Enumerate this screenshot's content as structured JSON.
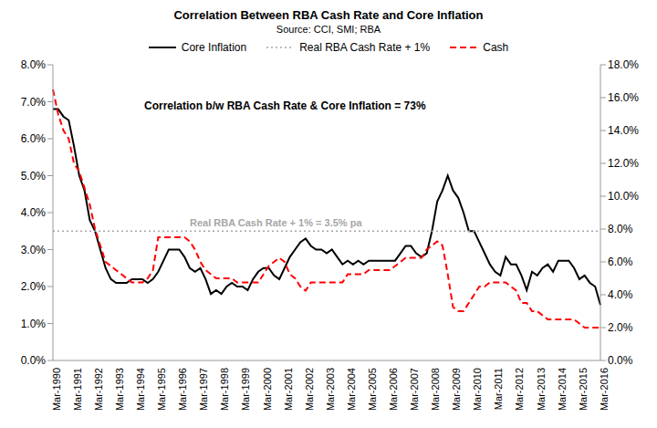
{
  "chart_data": {
    "type": "line",
    "title": "Correlation Between RBA Cash Rate and Core Inflation",
    "subtitle": "Source: CCI, SMI; RBA",
    "annotations": [
      "Correlation b/w RBA Cash Rate & Core Inflation = 73%",
      "Real RBA Cash Rate + 1% = 3.5% pa"
    ],
    "categories": [
      "Mar-1990",
      null,
      null,
      null,
      "Mar-1991",
      null,
      null,
      null,
      "Mar-1992",
      null,
      null,
      null,
      "Mar-1993",
      null,
      null,
      null,
      "Mar-1994",
      null,
      null,
      null,
      "Mar-1995",
      null,
      null,
      null,
      "Mar-1996",
      null,
      null,
      null,
      "Mar-1997",
      null,
      null,
      null,
      "Mar-1998",
      null,
      null,
      null,
      "Mar-1999",
      null,
      null,
      null,
      "Mar-2000",
      null,
      null,
      null,
      "Mar-2001",
      null,
      null,
      null,
      "Mar-2002",
      null,
      null,
      null,
      "Mar-2003",
      null,
      null,
      null,
      "Mar-2004",
      null,
      null,
      null,
      "Mar-2005",
      null,
      null,
      null,
      "Mar-2006",
      null,
      null,
      null,
      "Mar-2007",
      null,
      null,
      null,
      "Mar-2008",
      null,
      null,
      null,
      "Mar-2009",
      null,
      null,
      null,
      "Mar-2010",
      null,
      null,
      null,
      "Mar-2011",
      null,
      null,
      null,
      "Mar-2012",
      null,
      null,
      null,
      "Mar-2013",
      null,
      null,
      null,
      "Mar-2014",
      null,
      null,
      null,
      "Mar-2015",
      null,
      null,
      null,
      "Mar-2016"
    ],
    "series": [
      {
        "name": "Core Inflation",
        "color": "#000000",
        "line_style": "solid",
        "values": [
          6.8,
          6.8,
          6.6,
          6.5,
          5.8,
          5.0,
          4.6,
          3.8,
          3.5,
          3.0,
          2.5,
          2.2,
          2.1,
          2.1,
          2.1,
          2.2,
          2.2,
          2.2,
          2.1,
          2.2,
          2.4,
          2.7,
          3.0,
          3.0,
          3.0,
          2.8,
          2.5,
          2.4,
          2.5,
          2.2,
          1.8,
          1.9,
          1.8,
          2.0,
          2.1,
          2.0,
          2.0,
          1.9,
          2.2,
          2.4,
          2.5,
          2.5,
          2.3,
          2.2,
          2.5,
          2.8,
          3.0,
          3.2,
          3.3,
          3.1,
          3.0,
          3.0,
          2.9,
          3.0,
          2.8,
          2.6,
          2.7,
          2.6,
          2.7,
          2.6,
          2.7,
          2.7,
          2.7,
          2.7,
          2.7,
          2.7,
          2.9,
          3.1,
          3.1,
          2.9,
          2.8,
          2.9,
          3.5,
          4.3,
          4.6,
          5.0,
          4.6,
          4.4,
          4.0,
          3.5,
          3.5,
          3.2,
          2.9,
          2.6,
          2.4,
          2.3,
          2.8,
          2.6,
          2.6,
          2.3,
          1.9,
          2.4,
          2.3,
          2.5,
          2.6,
          2.4,
          2.7,
          2.7,
          2.7,
          2.5,
          2.2,
          2.3,
          2.1,
          2.0,
          1.5
        ]
      },
      {
        "name": "Real RBA Cash Rate + 1%",
        "color": "#a6a6a6",
        "line_style": "dotted",
        "values": [
          3.5,
          3.5,
          3.5,
          3.5,
          3.5,
          3.5,
          3.5,
          3.5,
          3.5,
          3.5,
          3.5,
          3.5,
          3.5,
          3.5,
          3.5,
          3.5,
          3.5,
          3.5,
          3.5,
          3.5,
          3.5,
          3.5,
          3.5,
          3.5,
          3.5,
          3.5,
          3.5,
          3.5,
          3.5,
          3.5,
          3.5,
          3.5,
          3.5,
          3.5,
          3.5,
          3.5,
          3.5,
          3.5,
          3.5,
          3.5,
          3.5,
          3.5,
          3.5,
          3.5,
          3.5,
          3.5,
          3.5,
          3.5,
          3.5,
          3.5,
          3.5,
          3.5,
          3.5,
          3.5,
          3.5,
          3.5,
          3.5,
          3.5,
          3.5,
          3.5,
          3.5,
          3.5,
          3.5,
          3.5,
          3.5,
          3.5,
          3.5,
          3.5,
          3.5,
          3.5,
          3.5,
          3.5,
          3.5,
          3.5,
          3.5,
          3.5,
          3.5,
          3.5,
          3.5,
          3.5,
          3.5,
          3.5,
          3.5,
          3.5,
          3.5,
          3.5,
          3.5,
          3.5,
          3.5,
          3.5,
          3.5,
          3.5,
          3.5,
          3.5,
          3.5,
          3.5,
          3.5,
          3.5,
          3.5,
          3.5,
          3.5,
          3.5,
          3.5,
          3.5,
          3.5
        ]
      },
      {
        "name": "Cash",
        "color": "#ff0000",
        "line_style": "dashed",
        "axis": "y2",
        "values": [
          16.5,
          15.0,
          14.0,
          13.5,
          12.0,
          11.5,
          10.5,
          9.5,
          8.0,
          7.0,
          6.0,
          5.75,
          5.5,
          5.25,
          5.0,
          4.75,
          4.75,
          4.75,
          5.0,
          5.5,
          7.5,
          7.5,
          7.5,
          7.5,
          7.5,
          7.5,
          7.25,
          6.75,
          6.0,
          5.5,
          5.25,
          5.0,
          5.0,
          5.0,
          5.0,
          4.75,
          4.75,
          4.75,
          4.75,
          4.75,
          5.25,
          5.75,
          6.0,
          6.25,
          6.0,
          5.25,
          5.0,
          4.5,
          4.25,
          4.75,
          4.75,
          4.75,
          4.75,
          4.75,
          4.75,
          4.75,
          5.25,
          5.25,
          5.25,
          5.25,
          5.5,
          5.5,
          5.5,
          5.5,
          5.5,
          5.75,
          6.0,
          6.25,
          6.25,
          6.25,
          6.25,
          6.75,
          7.0,
          7.25,
          7.0,
          5.25,
          3.25,
          3.0,
          3.0,
          3.5,
          4.0,
          4.5,
          4.5,
          4.75,
          4.75,
          4.75,
          4.75,
          4.5,
          4.25,
          3.5,
          3.5,
          3.0,
          3.0,
          2.75,
          2.5,
          2.5,
          2.5,
          2.5,
          2.5,
          2.5,
          2.25,
          2.0,
          2.0,
          2.0,
          2.0
        ]
      }
    ],
    "ylim": [
      0,
      8
    ],
    "yticks": [
      {
        "value": 0,
        "label": "0.0%"
      },
      {
        "value": 1,
        "label": "1.0%"
      },
      {
        "value": 2,
        "label": "2.0%"
      },
      {
        "value": 3,
        "label": "3.0%"
      },
      {
        "value": 4,
        "label": "4.0%"
      },
      {
        "value": 5,
        "label": "5.0%"
      },
      {
        "value": 6,
        "label": "6.0%"
      },
      {
        "value": 7,
        "label": "7.0%"
      },
      {
        "value": 8,
        "label": "8.0%"
      }
    ],
    "y2lim": [
      0,
      18
    ],
    "y2ticks": [
      {
        "value": 0,
        "label": "0.0%"
      },
      {
        "value": 2,
        "label": "2.0%"
      },
      {
        "value": 4,
        "label": "4.0%"
      },
      {
        "value": 6,
        "label": "6.0%"
      },
      {
        "value": 8,
        "label": "8.0%"
      },
      {
        "value": 10,
        "label": "10.0%"
      },
      {
        "value": 12,
        "label": "12.0%"
      },
      {
        "value": 14,
        "label": "14.0%"
      },
      {
        "value": 16,
        "label": "16.0%"
      },
      {
        "value": 18,
        "label": "18.0%"
      }
    ],
    "grid": false,
    "legend": "top"
  }
}
